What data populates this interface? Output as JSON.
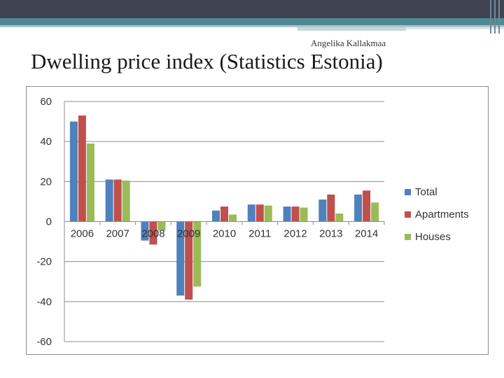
{
  "slide": {
    "author": "Angelika Kallakmaa",
    "title": "Dwelling price index (Statistics Estonia)"
  },
  "chart_data": {
    "type": "bar",
    "title": "",
    "xlabel": "",
    "ylabel": "",
    "ylim": [
      -60,
      60
    ],
    "yticks": [
      60,
      40,
      20,
      0,
      -20,
      -40,
      -60
    ],
    "categories": [
      "2006",
      "2007",
      "2008",
      "2009",
      "2010",
      "2011",
      "2012",
      "2013",
      "2014"
    ],
    "series": [
      {
        "name": "Total",
        "color": "#4f81bd",
        "values": [
          50,
          21,
          -9.5,
          -37,
          5.5,
          8.5,
          7.5,
          11,
          13.5
        ]
      },
      {
        "name": "Apartments",
        "color": "#c0504d",
        "values": [
          53,
          21,
          -11.5,
          -39,
          7.5,
          8.5,
          7.5,
          13.5,
          15.5
        ]
      },
      {
        "name": "Houses",
        "color": "#9bbb59",
        "values": [
          39,
          20.5,
          -4.5,
          -32.5,
          3.5,
          8,
          7,
          4,
          9.5
        ]
      }
    ],
    "legend": "right",
    "grid": true
  }
}
